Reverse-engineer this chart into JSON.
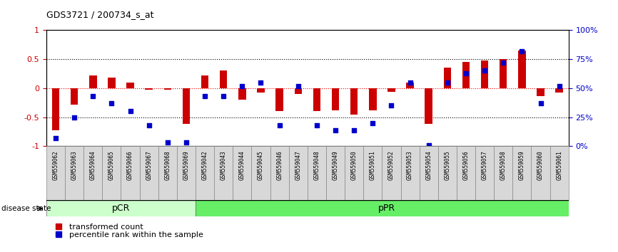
{
  "title": "GDS3721 / 200734_s_at",
  "samples": [
    "GSM559062",
    "GSM559063",
    "GSM559064",
    "GSM559065",
    "GSM559066",
    "GSM559067",
    "GSM559068",
    "GSM559069",
    "GSM559042",
    "GSM559043",
    "GSM559044",
    "GSM559045",
    "GSM559046",
    "GSM559047",
    "GSM559048",
    "GSM559049",
    "GSM559050",
    "GSM559051",
    "GSM559052",
    "GSM559053",
    "GSM559054",
    "GSM559055",
    "GSM559056",
    "GSM559057",
    "GSM559058",
    "GSM559059",
    "GSM559060",
    "GSM559061"
  ],
  "transformed_count": [
    -0.72,
    -0.28,
    0.22,
    0.18,
    0.1,
    -0.02,
    -0.02,
    -0.62,
    0.22,
    0.3,
    -0.2,
    -0.08,
    -0.4,
    -0.1,
    -0.4,
    -0.38,
    -0.45,
    -0.38,
    -0.06,
    0.1,
    -0.62,
    0.35,
    0.45,
    0.48,
    0.5,
    0.65,
    -0.14,
    -0.08
  ],
  "percentile_rank": [
    0.07,
    0.25,
    0.43,
    0.37,
    0.3,
    0.18,
    0.03,
    0.03,
    0.43,
    0.43,
    0.52,
    0.55,
    0.18,
    0.52,
    0.18,
    0.14,
    0.14,
    0.2,
    0.35,
    0.55,
    0.01,
    0.55,
    0.63,
    0.65,
    0.72,
    0.82,
    0.37,
    0.52
  ],
  "groups": [
    {
      "label": "pCR",
      "start": 0,
      "end": 8,
      "color": "#ccffcc"
    },
    {
      "label": "pPR",
      "start": 8,
      "end": 28,
      "color": "#66ee66"
    }
  ],
  "bar_color": "#cc0000",
  "dot_color": "#0000cc",
  "ylim": [
    -1.0,
    1.0
  ],
  "yticks": [
    -1.0,
    -0.5,
    0.0,
    0.5,
    1.0
  ],
  "ytick_labels": [
    "-1",
    "-0.5",
    "0",
    "0.5",
    "1"
  ],
  "y2ticks": [
    0.0,
    0.25,
    0.5,
    0.75,
    1.0
  ],
  "y2ticklabels": [
    "0%",
    "25%",
    "50%",
    "75%",
    "100%"
  ],
  "legend_items": [
    {
      "label": "transformed count",
      "color": "#cc0000",
      "marker": "s"
    },
    {
      "label": "percentile rank within the sample",
      "color": "#0000cc",
      "marker": "s"
    }
  ],
  "disease_state_label": "disease state",
  "pcr_count": 8,
  "total_count": 28
}
